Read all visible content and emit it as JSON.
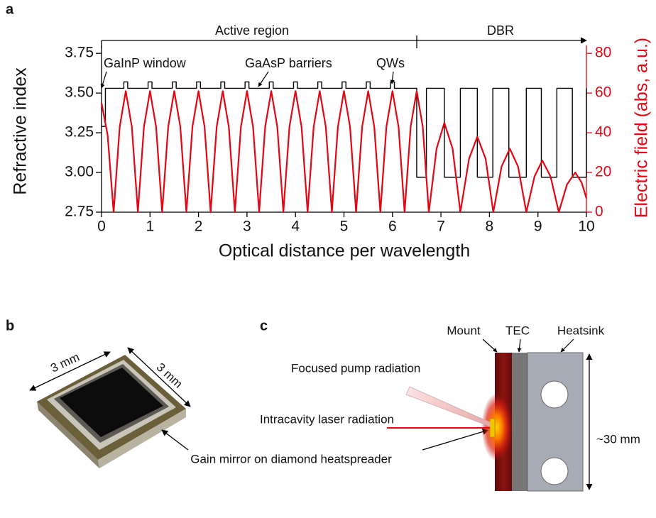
{
  "chart_data": {
    "type": "line",
    "panel_label": "a",
    "xlabel": "Optical distance per wavelength",
    "xlim": [
      0,
      10
    ],
    "xticks": [
      0,
      1,
      2,
      3,
      4,
      5,
      6,
      7,
      8,
      9,
      10
    ],
    "ylim": [
      2.75,
      3.8
    ],
    "yticks": [
      2.75,
      {
        "value": 3.0,
        "label": "3.00"
      },
      3.25,
      {
        "value": 3.5,
        "label": "3.50"
      },
      3.75
    ],
    "y2lim": [
      0,
      84
    ],
    "y2ticks": [
      0,
      20,
      40,
      60,
      80
    ],
    "grid": false,
    "regions": [
      "Active region",
      "DBR"
    ],
    "annotations": [
      "GaInP window",
      "GaAsP barriers",
      "QWs"
    ],
    "series": [
      {
        "name": "Refractive index",
        "color": "#000000",
        "x": [
          0,
          0.08,
          0.08,
          0.46,
          0.46,
          0.54,
          0.54,
          0.96,
          0.96,
          1.04,
          1.04,
          1.46,
          1.46,
          1.54,
          1.54,
          1.96,
          1.96,
          2.04,
          2.04,
          2.46,
          2.46,
          2.54,
          2.54,
          2.96,
          2.96,
          3.04,
          3.04,
          3.46,
          3.46,
          3.54,
          3.54,
          3.96,
          3.96,
          4.04,
          4.04,
          4.46,
          4.46,
          4.54,
          4.54,
          4.96,
          4.96,
          5.04,
          5.04,
          5.46,
          5.46,
          5.54,
          5.54,
          5.96,
          5.96,
          6.04,
          6.04,
          6.5,
          6.5,
          6.7,
          6.7,
          7.07,
          7.07,
          7.4,
          7.4,
          7.75,
          7.75,
          8.07,
          8.07,
          8.4,
          8.4,
          8.76,
          8.76,
          9.07,
          9.07,
          9.39,
          9.39,
          9.71,
          9.71,
          10,
          10
        ],
        "values": [
          3.29,
          3.29,
          3.53,
          3.53,
          3.57,
          3.57,
          3.53,
          3.53,
          3.57,
          3.57,
          3.53,
          3.53,
          3.57,
          3.57,
          3.53,
          3.53,
          3.57,
          3.57,
          3.53,
          3.53,
          3.57,
          3.57,
          3.53,
          3.53,
          3.57,
          3.57,
          3.53,
          3.53,
          3.57,
          3.57,
          3.53,
          3.53,
          3.57,
          3.57,
          3.53,
          3.53,
          3.57,
          3.57,
          3.53,
          3.53,
          3.57,
          3.57,
          3.53,
          3.53,
          3.57,
          3.57,
          3.53,
          3.53,
          3.57,
          3.57,
          3.53,
          3.53,
          2.97,
          2.97,
          3.53,
          3.53,
          2.97,
          2.97,
          3.53,
          3.53,
          2.97,
          2.97,
          3.53,
          3.53,
          2.97,
          2.97,
          3.53,
          3.53,
          2.97,
          2.97,
          3.53,
          3.53,
          2.97,
          2.97,
          3.53
        ]
      },
      {
        "name": "Electric field (abs, a.u.)",
        "color": "#e30613",
        "axis": "y2",
        "x": [
          0,
          0.125,
          0.25,
          0.375,
          0.5,
          0.625,
          0.75,
          0.875,
          1,
          1.125,
          1.25,
          1.375,
          1.5,
          1.625,
          1.75,
          1.875,
          2,
          2.125,
          2.25,
          2.375,
          2.5,
          2.625,
          2.75,
          2.875,
          3,
          3.125,
          3.25,
          3.375,
          3.5,
          3.625,
          3.75,
          3.875,
          4,
          4.125,
          4.25,
          4.375,
          4.5,
          4.625,
          4.75,
          4.875,
          5,
          5.125,
          5.25,
          5.375,
          5.5,
          5.625,
          5.75,
          5.875,
          6,
          6.125,
          6.25,
          6.375,
          6.5,
          6.625,
          6.75,
          6.91,
          7.07,
          7.24,
          7.4,
          7.58,
          7.75,
          7.92,
          8.08,
          8.25,
          8.42,
          8.59,
          8.76,
          8.93,
          9.09,
          9.26,
          9.43,
          9.6,
          9.77,
          9.9,
          10
        ],
        "values": [
          55,
          39,
          0,
          43,
          61,
          43,
          0,
          43,
          61,
          43,
          0,
          43,
          61,
          43,
          0,
          43,
          61,
          43,
          0,
          43,
          61,
          43,
          0,
          43,
          61,
          43,
          0,
          43,
          61,
          43,
          0,
          43,
          61,
          43,
          0,
          43,
          61,
          43,
          0,
          43,
          61,
          43,
          0,
          43,
          61,
          43,
          0,
          43,
          61,
          43,
          0,
          43,
          61,
          43,
          0,
          32,
          45,
          32,
          0,
          27,
          38,
          27,
          0,
          23,
          32,
          23,
          0,
          18,
          26,
          18,
          0,
          14,
          20,
          15,
          7
        ]
      }
    ]
  },
  "panel_b": {
    "label": "b",
    "dimensions": [
      "3 mm",
      "3 mm"
    ],
    "caption": "Gain mirror on diamond heatspreader"
  },
  "panel_c": {
    "label": "c",
    "layers": [
      "Mount",
      "TEC",
      "Heatsink"
    ],
    "beams": [
      "Focused pump radiation",
      "Intracavity laser radiation"
    ],
    "size": "~30 mm"
  }
}
